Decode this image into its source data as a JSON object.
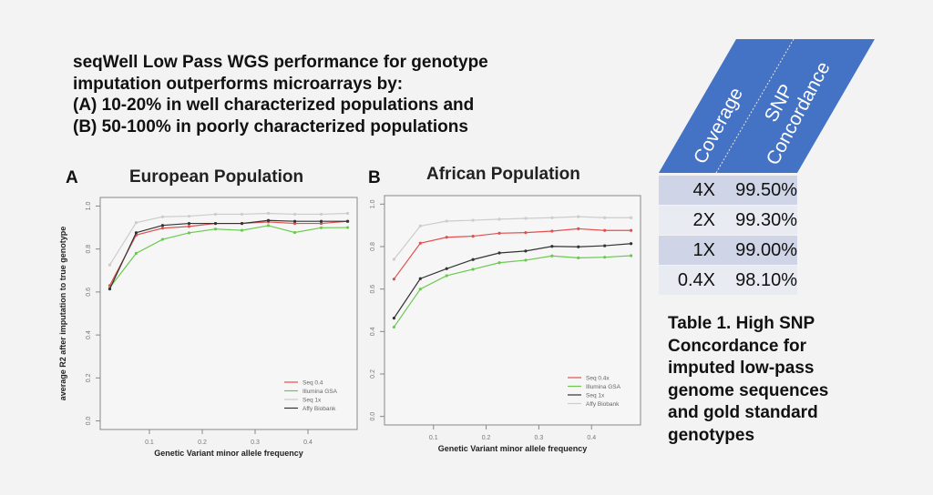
{
  "headline": [
    "seqWell Low Pass WGS performance for genotype",
    "imputation outperforms microarrays by:",
    "(A) 10-20% in well characterized populations and",
    "(B) 50-100% in poorly characterized populations"
  ],
  "colors": {
    "seq04": "#e05050",
    "illumina": "#6cc94f",
    "seq1x": "#c8c8c8",
    "affy": "#333333",
    "table_header": "#4472c4",
    "row_dark": "#cfd5e6",
    "row_light": "#e9ebf2"
  },
  "chart_data": [
    {
      "type": "line",
      "letter": "A",
      "title": "European Population",
      "xlabel": "Genetic Variant minor allele frequency",
      "ylabel": "average R2 after imputation to true genotype",
      "x": [
        0.025,
        0.075,
        0.125,
        0.175,
        0.225,
        0.275,
        0.325,
        0.375,
        0.425,
        0.475
      ],
      "xticks": [
        "0.1",
        "0.2",
        "0.3",
        "0.4"
      ],
      "yticks": [
        "0.0",
        "0.2",
        "0.4",
        "0.6",
        "0.8",
        "1.0"
      ],
      "ylim": [
        0,
        1
      ],
      "legend_position": "bottom-right",
      "series": [
        {
          "name": "Seq 0.4",
          "color": "#e05050",
          "values": [
            0.63,
            0.865,
            0.897,
            0.905,
            0.919,
            0.919,
            0.926,
            0.919,
            0.919,
            0.929
          ]
        },
        {
          "name": "Illumina GSA",
          "color": "#6cc94f",
          "values": [
            0.62,
            0.78,
            0.845,
            0.875,
            0.893,
            0.887,
            0.909,
            0.877,
            0.899,
            0.9
          ]
        },
        {
          "name": "Seq 1x",
          "color": "#cccccc",
          "values": [
            0.726,
            0.923,
            0.95,
            0.953,
            0.962,
            0.962,
            0.966,
            0.962,
            0.962,
            0.966
          ]
        },
        {
          "name": "Affy Biobank",
          "color": "#333333",
          "values": [
            0.614,
            0.876,
            0.91,
            0.919,
            0.919,
            0.919,
            0.933,
            0.929,
            0.929,
            0.929
          ]
        }
      ]
    },
    {
      "type": "line",
      "letter": "B",
      "title": "African Population",
      "xlabel": "Genetic Variant minor allele frequency",
      "ylabel": "",
      "x": [
        0.025,
        0.075,
        0.125,
        0.175,
        0.225,
        0.275,
        0.325,
        0.375,
        0.425,
        0.475
      ],
      "xticks": [
        "0.1",
        "0.2",
        "0.3",
        "0.4"
      ],
      "yticks": [
        "0.0",
        "0.2",
        "0.4",
        "0.6",
        "0.8",
        "1.0"
      ],
      "ylim": [
        0,
        1
      ],
      "legend_position": "bottom-right",
      "series": [
        {
          "name": "Seq 0.4x",
          "color": "#e05050",
          "values": [
            0.647,
            0.816,
            0.844,
            0.849,
            0.863,
            0.866,
            0.873,
            0.884,
            0.876,
            0.876
          ]
        },
        {
          "name": "Illumina GSA",
          "color": "#6cc94f",
          "values": [
            0.421,
            0.6,
            0.663,
            0.693,
            0.724,
            0.736,
            0.756,
            0.747,
            0.75,
            0.757
          ]
        },
        {
          "name": "Seq 1x",
          "color": "#333333",
          "values": [
            0.463,
            0.649,
            0.696,
            0.739,
            0.77,
            0.779,
            0.801,
            0.799,
            0.804,
            0.814
          ]
        },
        {
          "name": "Affy Biobank",
          "color": "#cccccc",
          "values": [
            0.74,
            0.897,
            0.92,
            0.924,
            0.929,
            0.933,
            0.936,
            0.941,
            0.936,
            0.936
          ]
        }
      ]
    }
  ],
  "table": {
    "headers": [
      "Coverage",
      "SNP Concordance"
    ],
    "rows": [
      [
        "4X",
        "99.50%"
      ],
      [
        "2X",
        "99.30%"
      ],
      [
        "1X",
        "99.00%"
      ],
      [
        "0.4X",
        "98.10%"
      ]
    ],
    "caption": [
      "Table 1. High SNP",
      "Concordance for",
      "imputed low-pass",
      "genome sequences",
      "and gold standard",
      "genotypes"
    ]
  }
}
